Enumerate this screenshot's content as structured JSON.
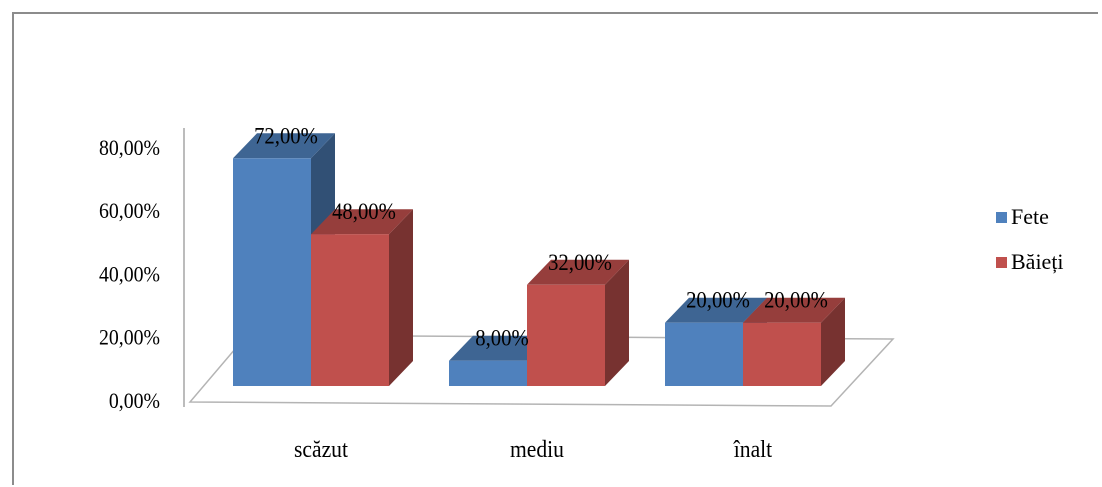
{
  "chart_data": {
    "type": "bar",
    "categories": [
      "scăzut",
      "mediu",
      "înalt"
    ],
    "series": [
      {
        "name": "Fete",
        "values": [
          72,
          8,
          20
        ],
        "labels": [
          "72,00%",
          "8,00%",
          "20,00%"
        ],
        "color": "#4f81bd"
      },
      {
        "name": "Băieți",
        "values": [
          48,
          32,
          20
        ],
        "labels": [
          "48,00%",
          "32,00%",
          "20,00%"
        ],
        "color": "#c0504d"
      }
    ],
    "ylim": [
      0,
      80
    ],
    "yticks": [
      {
        "value": 0,
        "label": "0,00%"
      },
      {
        "value": 20,
        "label": "20,00%"
      },
      {
        "value": 40,
        "label": "40,00%"
      },
      {
        "value": 60,
        "label": "60,00%"
      },
      {
        "value": 80,
        "label": "80,00%"
      }
    ],
    "legend_position": "right",
    "grid": false,
    "style": "3d-clustered-column"
  }
}
